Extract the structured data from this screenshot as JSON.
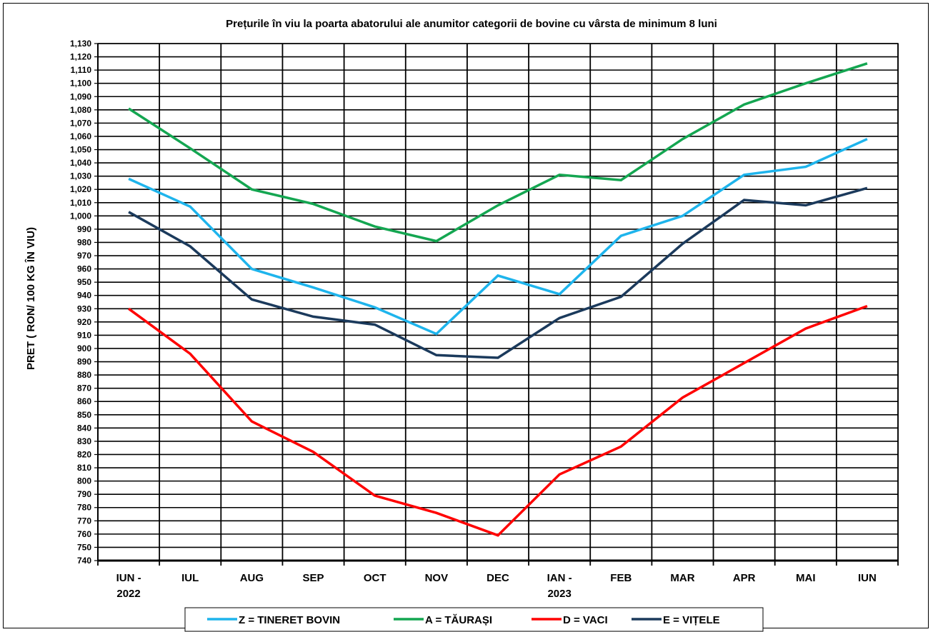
{
  "chart_data": {
    "type": "line",
    "title": "Prețurile în viu la poarta abatorului ale anumitor categorii de  bovine cu vârsta de minimum 8 luni",
    "ylabel": "PRET  ( RON/ 100 KG ÎN VIU)",
    "xlabel": "",
    "categories": [
      [
        "IUN -",
        "2022"
      ],
      [
        "IUL"
      ],
      [
        "AUG"
      ],
      [
        "SEP"
      ],
      [
        "OCT"
      ],
      [
        "NOV"
      ],
      [
        "DEC"
      ],
      [
        "IAN -",
        "2023"
      ],
      [
        "FEB"
      ],
      [
        "MAR"
      ],
      [
        "APR"
      ],
      [
        "MAI"
      ],
      [
        "IUN"
      ]
    ],
    "ylim": [
      740,
      1130
    ],
    "ystep": 10,
    "grid": true,
    "legend_position": "bottom",
    "series": [
      {
        "name": "Z  = TINERET BOVIN",
        "color": "#1EB4EC",
        "values": [
          1028,
          1007,
          960,
          946,
          931,
          911,
          955,
          941,
          985,
          1000,
          1031,
          1037,
          1058
        ]
      },
      {
        "name": "A = TĂURAȘI",
        "color": "#14A651",
        "values": [
          1081,
          1051,
          1020,
          1009,
          992,
          981,
          1008,
          1031,
          1027,
          1058,
          1084,
          1100,
          1115
        ]
      },
      {
        "name": "D = VACI",
        "color": "#FF0000",
        "values": [
          930,
          896,
          845,
          822,
          789,
          776,
          759,
          805,
          826,
          863,
          889,
          915,
          932
        ]
      },
      {
        "name": "E = VIȚELE",
        "color": "#1B3A5C",
        "values": [
          1003,
          977,
          937,
          924,
          918,
          895,
          893,
          923,
          939,
          979,
          1012,
          1008,
          1021
        ]
      }
    ]
  }
}
